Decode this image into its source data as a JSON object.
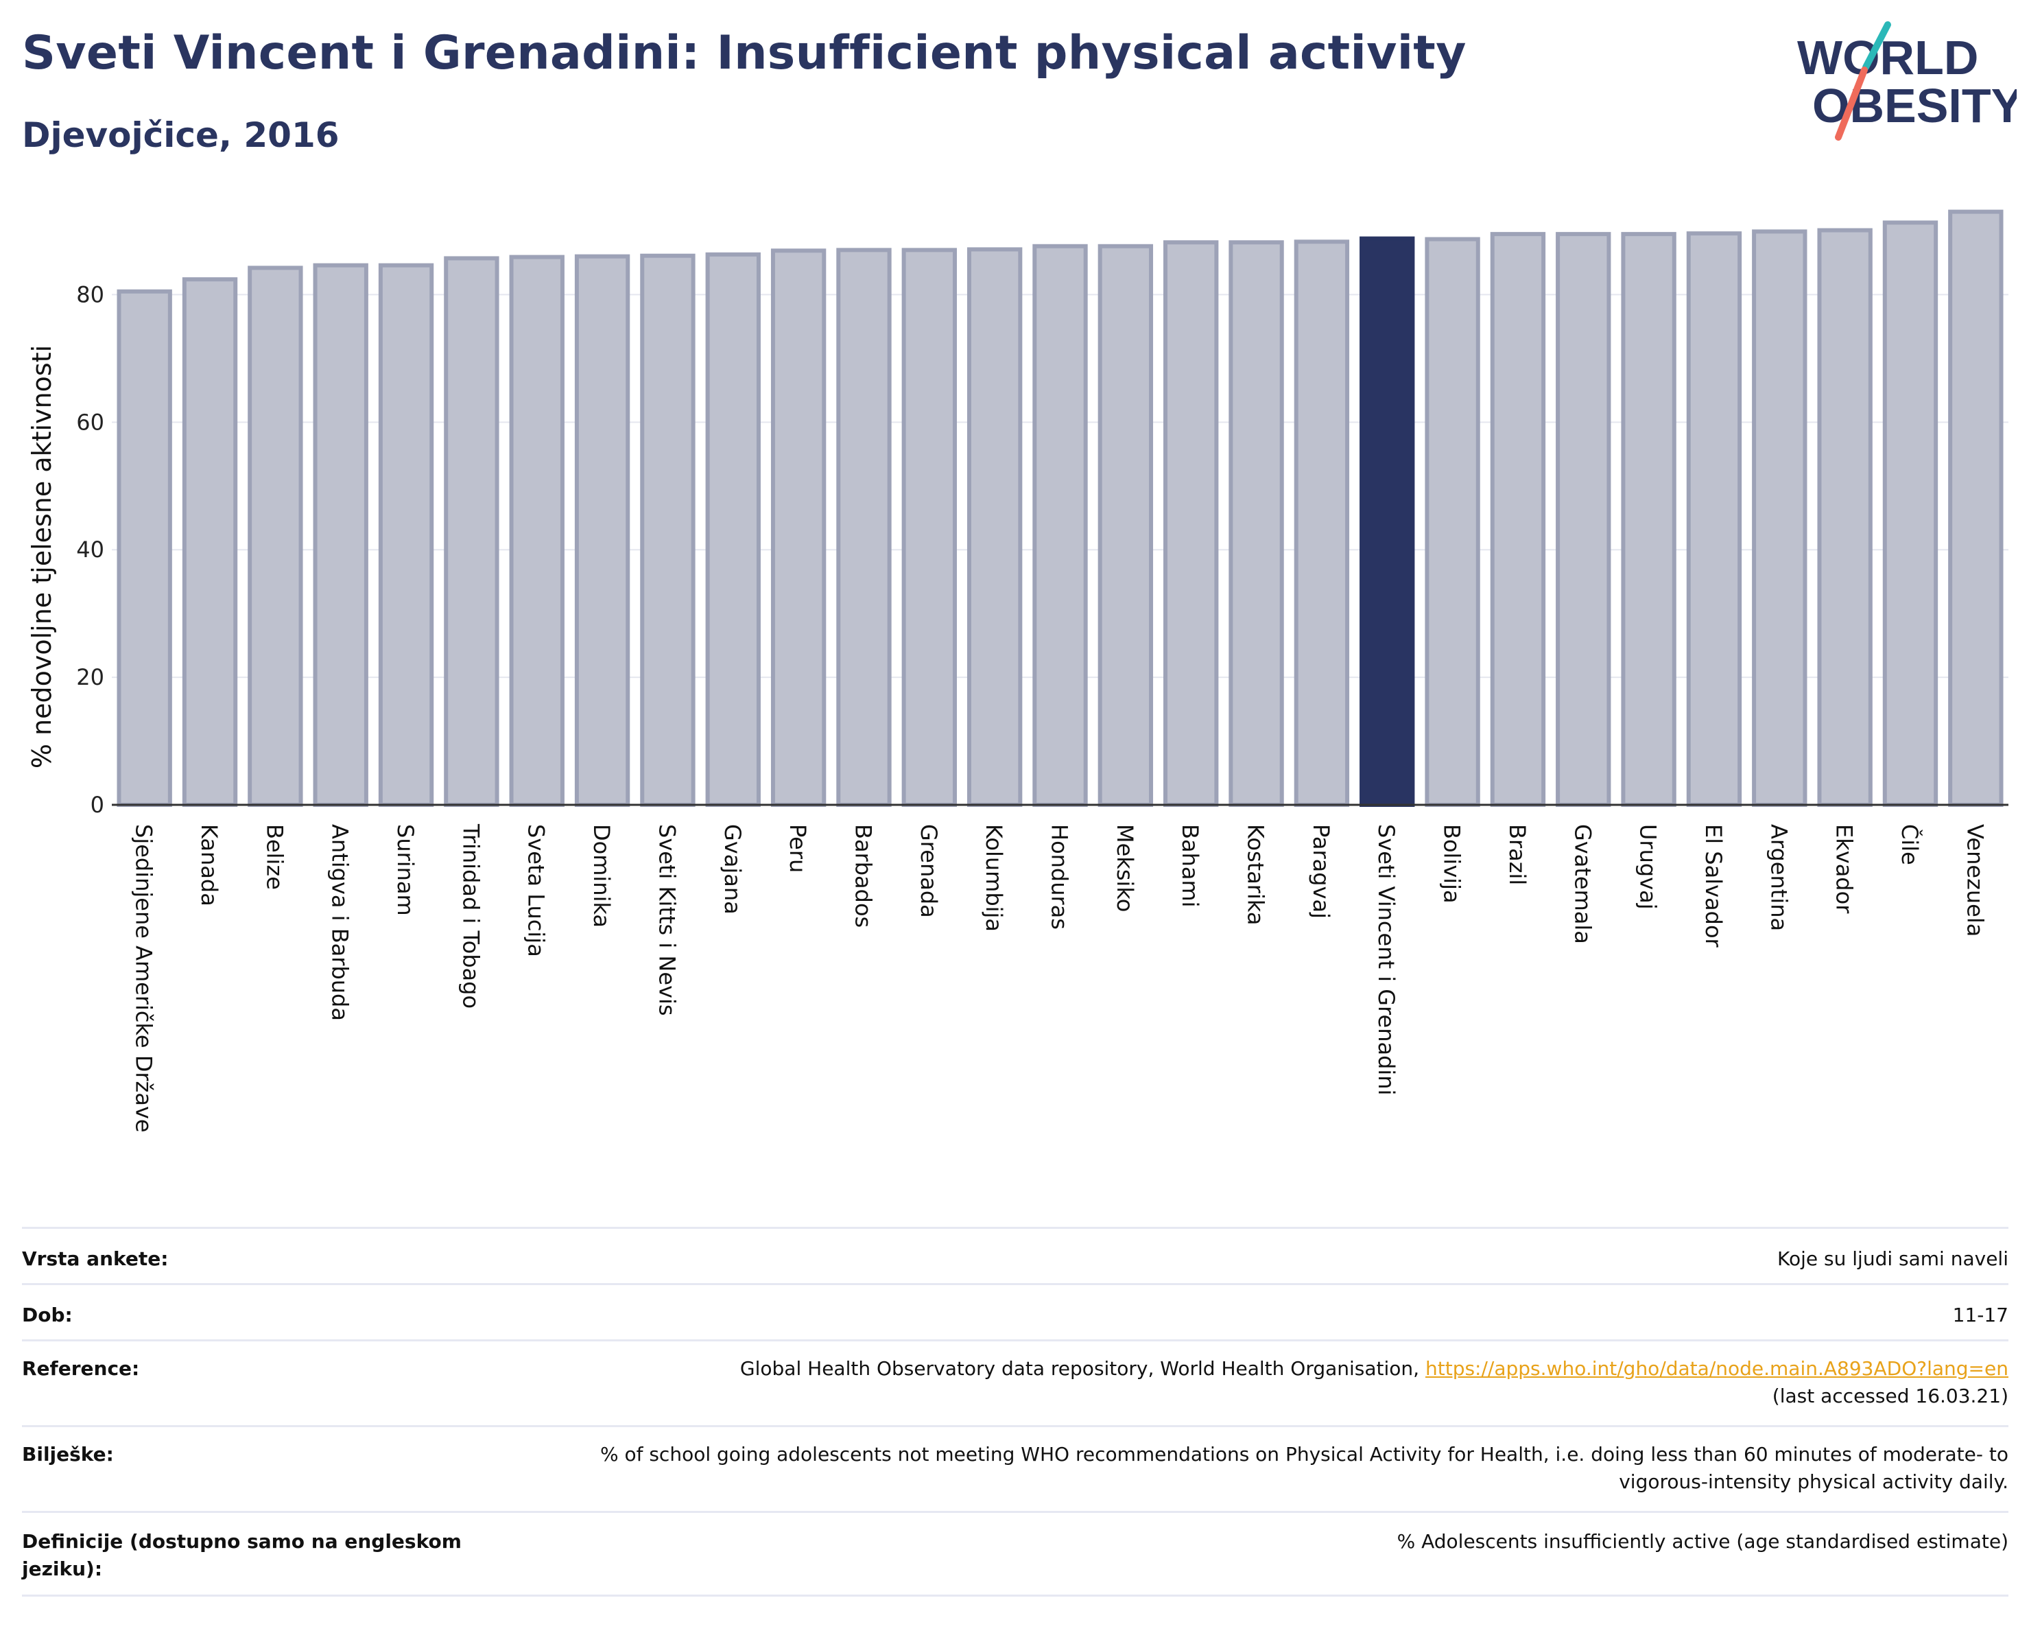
{
  "header": {
    "title": "Sveti Vincent i Grenadini: Insufficient physical activity",
    "subtitle": "Djevojčice, 2016"
  },
  "logo": {
    "line1": "WORLD",
    "line2": "OBESITY",
    "icon": "world-obesity-logo"
  },
  "colors": {
    "title": "#2a3560",
    "bar": "#bec1ce",
    "bar_border": "#9da2b7",
    "highlight": "#293462",
    "grid": "#e5e7ef",
    "link": "#e8a21a",
    "logo_slash_top": "#2bb8b8",
    "logo_slash_bottom": "#ef6b5b"
  },
  "chart_data": {
    "type": "bar",
    "ylabel": "% nedovoljne tjelesne aktivnosti",
    "xlabel": "",
    "ylim": [
      0,
      95
    ],
    "yticks": [
      0,
      20,
      40,
      60,
      80
    ],
    "grid": true,
    "highlight": "Sveti Vincent i Grenadini",
    "categories": [
      "Sjedinjene Američke Države",
      "Kanada",
      "Belize",
      "Antigva i Barbuda",
      "Surinam",
      "Trinidad i Tobago",
      "Sveta Lucija",
      "Dominika",
      "Sveti Kitts i Nevis",
      "Gvajana",
      "Peru",
      "Barbados",
      "Grenada",
      "Kolumbija",
      "Honduras",
      "Meksiko",
      "Bahami",
      "Kostarika",
      "Paragvaj",
      "Sveti Vincent i Grenadini",
      "Bolivija",
      "Brazil",
      "Gvatemala",
      "Urugvaj",
      "El Salvador",
      "Argentina",
      "Ekvador",
      "Čile",
      "Venezuela"
    ],
    "values": [
      80.5,
      82.4,
      84.2,
      84.6,
      84.6,
      85.7,
      85.9,
      86.0,
      86.1,
      86.3,
      86.9,
      87.0,
      87.0,
      87.1,
      87.6,
      87.6,
      88.2,
      88.2,
      88.3,
      88.8,
      88.7,
      89.5,
      89.5,
      89.5,
      89.6,
      89.9,
      90.1,
      91.3,
      93.0
    ]
  },
  "info": [
    {
      "key": "Vrsta ankete:",
      "value": "Koje su ljudi sami naveli"
    },
    {
      "key": "Dob:",
      "value": "11-17"
    },
    {
      "key": "Reference:",
      "value": "Global Health Observatory data repository, World Health Organisation, ",
      "link": "https://apps.who.int/gho/data/node.main.A893ADO?lang=en",
      "value2": "(last accessed 16.03.21)"
    },
    {
      "key": "Bilješke:",
      "value": "% of school going adolescents not meeting WHO recommendations on Physical Activity for Health, i.e. doing less than 60 minutes of moderate- to vigorous-intensity physical activity daily."
    },
    {
      "key": "Definicije (dostupno samo na engleskom jeziku):",
      "value": "% Adolescents insufficiently active (age standardised estimate)"
    }
  ]
}
